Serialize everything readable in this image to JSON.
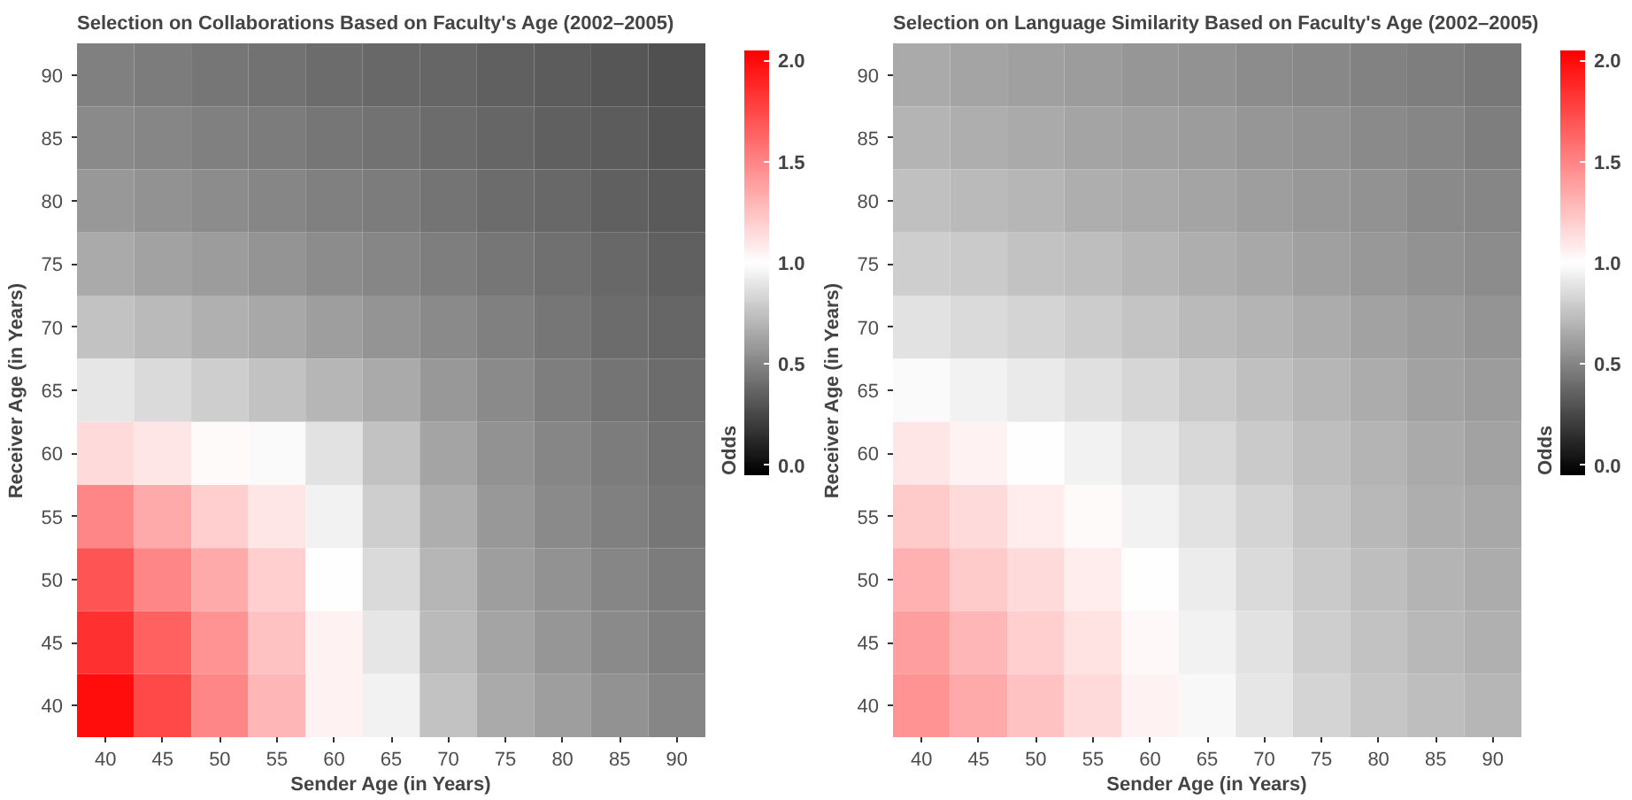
{
  "chart_data": [
    {
      "type": "heatmap",
      "title": "Selection on Collaborations Based on Faculty's Age (2002–2005)",
      "xlabel": "Sender Age (in Years)",
      "ylabel": "Receiver Age (in Years)",
      "clabel": "Odds",
      "categories": [
        "40",
        "45",
        "50",
        "55",
        "60",
        "65",
        "70",
        "75",
        "80",
        "85",
        "90"
      ],
      "y_categories": [
        "90",
        "85",
        "80",
        "75",
        "70",
        "65",
        "60",
        "55",
        "50",
        "45",
        "40"
      ],
      "clim": [
        -0.05,
        2.05
      ],
      "cticks": [
        {
          "value": 0,
          "label": "0.0"
        },
        {
          "value": 0.5,
          "label": "0.5"
        },
        {
          "value": 1,
          "label": "1.0"
        },
        {
          "value": 1.5,
          "label": "1.5"
        },
        {
          "value": 2,
          "label": "2.0"
        }
      ],
      "cells": [
        [
          0.48,
          0.46,
          0.44,
          0.42,
          0.4,
          0.38,
          0.37,
          0.35,
          0.33,
          0.31,
          0.28
        ],
        [
          0.52,
          0.5,
          0.48,
          0.46,
          0.44,
          0.42,
          0.4,
          0.37,
          0.35,
          0.33,
          0.3
        ],
        [
          0.58,
          0.55,
          0.53,
          0.5,
          0.48,
          0.46,
          0.43,
          0.4,
          0.38,
          0.35,
          0.32
        ],
        [
          0.65,
          0.62,
          0.59,
          0.56,
          0.53,
          0.5,
          0.47,
          0.44,
          0.41,
          0.38,
          0.35
        ],
        [
          0.75,
          0.72,
          0.68,
          0.64,
          0.6,
          0.56,
          0.52,
          0.48,
          0.44,
          0.4,
          0.37
        ],
        [
          0.9,
          0.85,
          0.8,
          0.75,
          0.7,
          0.65,
          0.58,
          0.52,
          0.47,
          0.43,
          0.4
        ],
        [
          1.15,
          1.1,
          1.02,
          0.98,
          0.88,
          0.75,
          0.63,
          0.55,
          0.5,
          0.46,
          0.42
        ],
        [
          1.5,
          1.35,
          1.2,
          1.1,
          0.95,
          0.8,
          0.67,
          0.58,
          0.52,
          0.48,
          0.44
        ],
        [
          1.7,
          1.5,
          1.35,
          1.2,
          1.0,
          0.85,
          0.7,
          0.6,
          0.55,
          0.5,
          0.46
        ],
        [
          1.85,
          1.65,
          1.45,
          1.25,
          1.05,
          0.9,
          0.72,
          0.63,
          0.57,
          0.52,
          0.48
        ],
        [
          2.0,
          1.75,
          1.5,
          1.3,
          1.05,
          0.95,
          0.75,
          0.65,
          0.6,
          0.55,
          0.5
        ]
      ]
    },
    {
      "type": "heatmap",
      "title": "Selection on Language Similarity Based on Faculty's Age (2002–2005)",
      "xlabel": "Sender Age (in Years)",
      "ylabel": "Receiver Age (in Years)",
      "clabel": "Odds",
      "categories": [
        "40",
        "45",
        "50",
        "55",
        "60",
        "65",
        "70",
        "75",
        "80",
        "85",
        "90"
      ],
      "y_categories": [
        "90",
        "85",
        "80",
        "75",
        "70",
        "65",
        "60",
        "55",
        "50",
        "45",
        "40"
      ],
      "clim": [
        -0.05,
        2.05
      ],
      "cticks": [
        {
          "value": 0,
          "label": "0.0"
        },
        {
          "value": 0.5,
          "label": "0.5"
        },
        {
          "value": 1,
          "label": "1.0"
        },
        {
          "value": 1.5,
          "label": "1.5"
        },
        {
          "value": 2,
          "label": "2.0"
        }
      ],
      "cells": [
        [
          0.65,
          0.63,
          0.61,
          0.59,
          0.57,
          0.55,
          0.53,
          0.51,
          0.49,
          0.47,
          0.45
        ],
        [
          0.69,
          0.67,
          0.65,
          0.63,
          0.61,
          0.59,
          0.57,
          0.55,
          0.52,
          0.5,
          0.47
        ],
        [
          0.74,
          0.72,
          0.7,
          0.67,
          0.65,
          0.63,
          0.6,
          0.58,
          0.55,
          0.52,
          0.5
        ],
        [
          0.8,
          0.78,
          0.75,
          0.73,
          0.7,
          0.67,
          0.64,
          0.61,
          0.58,
          0.55,
          0.53
        ],
        [
          0.88,
          0.85,
          0.82,
          0.79,
          0.76,
          0.72,
          0.69,
          0.66,
          0.62,
          0.59,
          0.56
        ],
        [
          0.98,
          0.95,
          0.91,
          0.87,
          0.83,
          0.78,
          0.74,
          0.7,
          0.66,
          0.62,
          0.59
        ],
        [
          1.1,
          1.05,
          1.0,
          0.95,
          0.9,
          0.84,
          0.78,
          0.73,
          0.69,
          0.65,
          0.62
        ],
        [
          1.22,
          1.15,
          1.08,
          1.02,
          0.95,
          0.88,
          0.82,
          0.76,
          0.71,
          0.67,
          0.64
        ],
        [
          1.32,
          1.22,
          1.15,
          1.08,
          1.0,
          0.92,
          0.85,
          0.78,
          0.73,
          0.69,
          0.66
        ],
        [
          1.4,
          1.3,
          1.2,
          1.12,
          1.03,
          0.95,
          0.88,
          0.8,
          0.75,
          0.71,
          0.68
        ],
        [
          1.45,
          1.35,
          1.25,
          1.15,
          1.05,
          0.97,
          0.9,
          0.82,
          0.77,
          0.73,
          0.7
        ]
      ]
    }
  ]
}
